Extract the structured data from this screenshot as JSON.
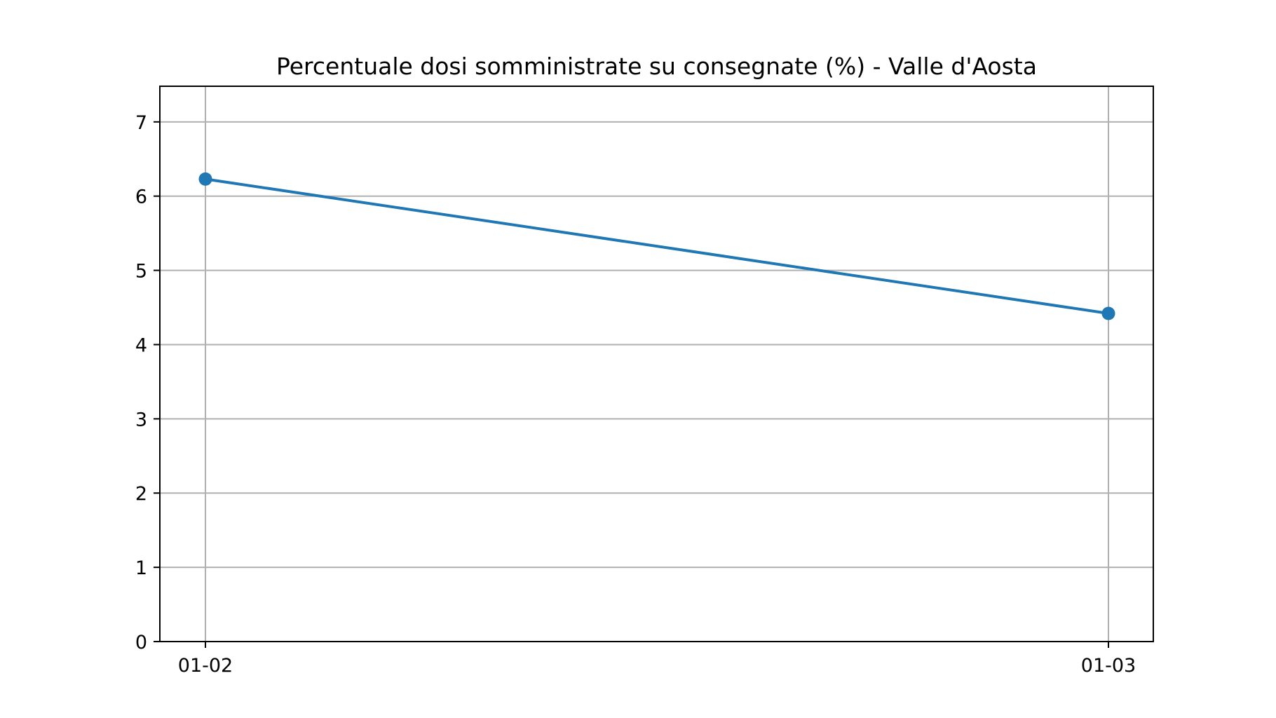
{
  "chart_data": {
    "type": "line",
    "title": "Percentuale dosi somministrate su consegnate (%) - Valle d'Aosta",
    "xlabel": "",
    "ylabel": "",
    "categories": [
      "01-02",
      "01-03"
    ],
    "series": [
      {
        "values": [
          6.23,
          4.42
        ],
        "color": "#1f77b4",
        "marker": "circle"
      }
    ],
    "ylim": [
      0,
      7.48
    ],
    "yticks": [
      0,
      1,
      2,
      3,
      4,
      5,
      6,
      7
    ],
    "grid": true,
    "legend": "none"
  }
}
